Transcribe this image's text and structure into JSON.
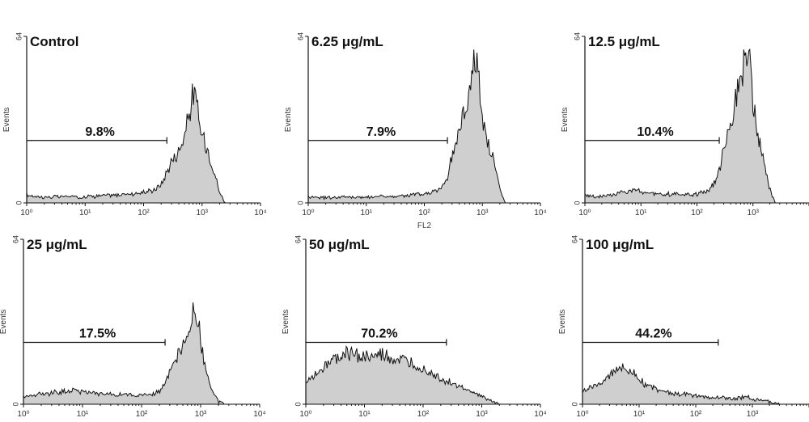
{
  "chart_data": [
    {
      "type": "area",
      "title": "Control",
      "ylabel": "Events",
      "xlabel": "",
      "x_scale": "log",
      "xlim": [
        1,
        10000
      ],
      "ylim": [
        0,
        64
      ],
      "ytick_labels": [
        "0",
        "64"
      ],
      "xtick_labels": [
        "10⁰",
        "10¹",
        "10²",
        "10³",
        "10⁴"
      ],
      "gate": {
        "x_start": 1,
        "x_end": 250,
        "y": 24,
        "label": "9.8%"
      },
      "x": [
        1,
        1.5,
        2,
        3,
        5,
        8,
        12,
        20,
        35,
        60,
        100,
        150,
        200,
        250,
        300,
        400,
        500,
        600,
        700,
        800,
        900,
        1000,
        1200,
        1500,
        2000,
        2500
      ],
      "y": [
        3,
        2.5,
        2.2,
        2.3,
        2.5,
        2.2,
        2.6,
        2.8,
        3,
        3.5,
        4,
        5,
        7,
        12,
        16,
        20,
        26,
        34,
        42,
        39,
        30,
        26,
        22,
        15,
        4,
        0
      ]
    },
    {
      "type": "area",
      "title": "6.25 μg/mL",
      "ylabel": "Events",
      "xlabel": "FL2",
      "x_scale": "log",
      "xlim": [
        1,
        10000
      ],
      "ylim": [
        0,
        64
      ],
      "ytick_labels": [
        "0",
        "64"
      ],
      "xtick_labels": [
        "10⁰",
        "10¹",
        "10²",
        "10³",
        "10⁴"
      ],
      "gate": {
        "x_start": 1,
        "x_end": 250,
        "y": 24,
        "label": "7.9%"
      },
      "x": [
        1,
        1.5,
        2,
        3,
        5,
        8,
        12,
        20,
        35,
        60,
        100,
        150,
        200,
        250,
        300,
        400,
        500,
        600,
        700,
        800,
        900,
        1000,
        1200,
        1500,
        2000,
        2500
      ],
      "y": [
        2.5,
        2.2,
        2,
        2.2,
        2.3,
        2,
        2.4,
        2.5,
        2.5,
        3,
        3.5,
        4.5,
        6,
        10,
        18,
        28,
        36,
        44,
        52,
        60,
        44,
        30,
        24,
        18,
        5,
        0
      ]
    },
    {
      "type": "area",
      "title": "12.5 μg/mL",
      "ylabel": "Events",
      "xlabel": "",
      "x_scale": "log",
      "xlim": [
        1,
        10000
      ],
      "ylim": [
        0,
        64
      ],
      "ytick_labels": [
        "0",
        "64"
      ],
      "xtick_labels": [
        "10⁰",
        "10¹",
        "10²",
        "10³",
        "10⁴"
      ],
      "gate": {
        "x_start": 1,
        "x_end": 250,
        "y": 24,
        "label": "10.4%"
      },
      "x": [
        1,
        1.5,
        2,
        3,
        5,
        8,
        12,
        20,
        35,
        60,
        100,
        150,
        200,
        250,
        300,
        400,
        500,
        600,
        700,
        800,
        900,
        1000,
        1200,
        1500,
        2000,
        2500
      ],
      "y": [
        3,
        2.5,
        2.4,
        3,
        4.5,
        5,
        4,
        3.5,
        3.2,
        3,
        3.5,
        4.5,
        7,
        12,
        22,
        32,
        40,
        48,
        54,
        58,
        52,
        38,
        26,
        18,
        5,
        0
      ]
    },
    {
      "type": "area",
      "title": "25 μg/mL",
      "ylabel": "Events",
      "xlabel": "",
      "x_scale": "log",
      "xlim": [
        1,
        10000
      ],
      "ylim": [
        0,
        64
      ],
      "ytick_labels": [
        "0",
        "64"
      ],
      "xtick_labels": [
        "10⁰",
        "10¹",
        "10²",
        "10³",
        "10⁴"
      ],
      "gate": {
        "x_start": 1,
        "x_end": 250,
        "y": 24,
        "label": "17.5%"
      },
      "x": [
        1,
        1.5,
        2,
        3,
        5,
        8,
        12,
        20,
        35,
        60,
        100,
        150,
        200,
        250,
        300,
        400,
        500,
        600,
        700,
        800,
        900,
        1000,
        1200,
        1500,
        2000,
        2500
      ],
      "y": [
        3,
        3.5,
        4,
        4.5,
        5,
        5.5,
        4.5,
        4,
        3.8,
        3.5,
        3.5,
        4,
        5,
        8,
        12,
        18,
        22,
        26,
        32,
        38,
        34,
        24,
        14,
        6,
        1,
        0
      ]
    },
    {
      "type": "area",
      "title": "50 μg/mL",
      "ylabel": "Events",
      "xlabel": "",
      "x_scale": "log",
      "xlim": [
        1,
        10000
      ],
      "ylim": [
        0,
        64
      ],
      "ytick_labels": [
        "0",
        "64"
      ],
      "xtick_labels": [
        "10⁰",
        "10¹",
        "10²",
        "10³",
        "10⁴"
      ],
      "gate": {
        "x_start": 1,
        "x_end": 250,
        "y": 24,
        "label": "70.2%"
      },
      "x": [
        1,
        1.5,
        2,
        3,
        5,
        8,
        12,
        20,
        35,
        60,
        100,
        150,
        200,
        250,
        300,
        400,
        500,
        600,
        700,
        800,
        900,
        1000,
        1200,
        1500,
        2000
      ],
      "y": [
        8,
        12,
        15,
        17,
        20,
        19,
        18,
        19,
        17,
        16,
        14,
        12,
        10,
        9,
        8,
        7,
        6,
        5,
        4.5,
        4,
        3.5,
        3,
        2,
        1,
        0
      ]
    },
    {
      "type": "area",
      "title": "100 μg/mL",
      "ylabel": "Events",
      "xlabel": "",
      "x_scale": "log",
      "xlim": [
        1,
        10000
      ],
      "ylim": [
        0,
        64
      ],
      "ytick_labels": [
        "0",
        "64"
      ],
      "xtick_labels": [
        "10⁰",
        "10¹",
        "10²",
        "10³",
        "10⁴"
      ],
      "gate": {
        "x_start": 1,
        "x_end": 250,
        "y": 24,
        "label": "44.2%"
      },
      "x": [
        1,
        1.5,
        2,
        3,
        4,
        5,
        6,
        8,
        10,
        12,
        15,
        20,
        30,
        50,
        80,
        120,
        200,
        300,
        500,
        800,
        1000,
        1500,
        2000,
        3000
      ],
      "y": [
        5,
        7,
        8,
        11,
        14,
        15,
        13,
        12,
        10,
        8,
        7,
        6,
        5,
        4,
        3.5,
        3,
        2.5,
        2.5,
        2,
        3,
        2,
        1.5,
        1,
        0
      ]
    }
  ]
}
